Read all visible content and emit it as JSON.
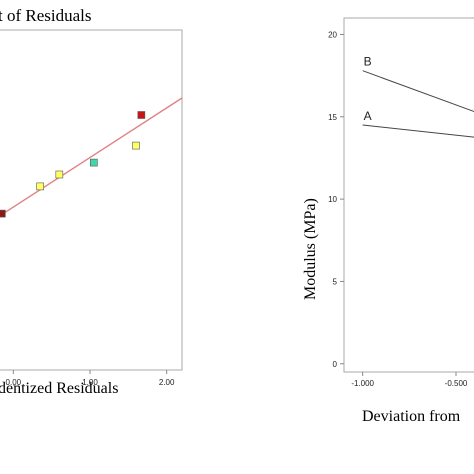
{
  "chart_data": [
    {
      "type": "scatter",
      "title": "t of Residuals",
      "xlabel": "dentized Residuals",
      "ylabel": "",
      "x_ticks": [
        "0.00",
        "1.00",
        "2.00"
      ],
      "xlim": [
        -0.2,
        2.2
      ],
      "ylim": [
        0,
        100
      ],
      "fit_line": {
        "x": [
          -0.2,
          2.2
        ],
        "y": [
          45,
          80
        ],
        "color": "#e08080"
      },
      "points": [
        {
          "x": -0.15,
          "y": 46,
          "color": "#8a1a1a"
        },
        {
          "x": 0.35,
          "y": 54,
          "color": "#ffff66"
        },
        {
          "x": 0.6,
          "y": 57.5,
          "color": "#ffff66"
        },
        {
          "x": 1.05,
          "y": 61,
          "color": "#40d8a8"
        },
        {
          "x": 1.6,
          "y": 66,
          "color": "#ffff66"
        },
        {
          "x": 1.67,
          "y": 75,
          "color": "#c81414"
        }
      ],
      "frame_color": "#aaaaaa"
    },
    {
      "type": "line",
      "title": "",
      "xlabel": "Deviation from",
      "ylabel": "Modulus (MPa)",
      "x_ticks": [
        "-1.000",
        "-0.500"
      ],
      "y_ticks": [
        "0",
        "5",
        "10",
        "15",
        "20"
      ],
      "xlim": [
        -1.1,
        -0.35
      ],
      "ylim": [
        -0.5,
        21
      ],
      "series": [
        {
          "name": "A",
          "x": [
            -1.0,
            -0.35
          ],
          "y": [
            14.5,
            13.7
          ]
        },
        {
          "name": "B",
          "x": [
            -1.0,
            -0.35
          ],
          "y": [
            17.8,
            15.1
          ]
        }
      ],
      "line_color": "#444444",
      "frame_color": "#aaaaaa"
    }
  ]
}
